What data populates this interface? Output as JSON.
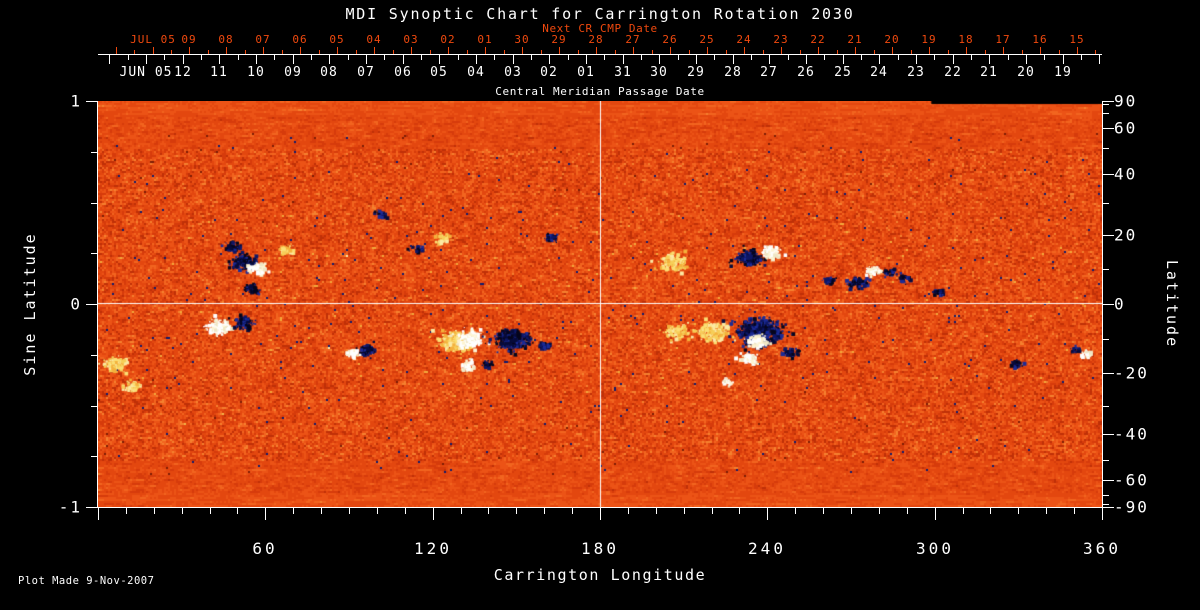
{
  "title": "MDI Synoptic Chart for Carrington Rotation 2030",
  "top_axis": {
    "label": "Next CR CMP Date",
    "color": "#f0490e",
    "tick_labels": [
      "JUL 05",
      "09",
      "08",
      "07",
      "06",
      "05",
      "04",
      "03",
      "02",
      "01",
      "30",
      "29",
      "28",
      "27",
      "26",
      "25",
      "24",
      "23",
      "22",
      "21",
      "20",
      "19",
      "18",
      "17",
      "16",
      "15"
    ]
  },
  "cmp_axis": {
    "label": "Central Meridian Passage Date",
    "tick_labels": [
      "JUN 05",
      "12",
      "11",
      "10",
      "09",
      "08",
      "07",
      "06",
      "05",
      "04",
      "03",
      "02",
      "01",
      "31",
      "30",
      "29",
      "28",
      "27",
      "26",
      "25",
      "24",
      "23",
      "22",
      "21",
      "20",
      "19"
    ]
  },
  "x_axis": {
    "label": "Carrington Longitude",
    "major_tick_labels": [
      "60",
      "120",
      "180",
      "240",
      "300",
      "360"
    ]
  },
  "y_left_axis": {
    "label": "Sine Latitude",
    "tick_labels": [
      "1",
      "0",
      "-1"
    ]
  },
  "y_right_axis": {
    "label": "Latitude",
    "tick_labels": [
      "90",
      "60",
      "40",
      "20",
      "0",
      "-20",
      "-40",
      "-60",
      "-90"
    ]
  },
  "footer": "Plot Made  9-Nov-2007",
  "colors": {
    "background": "#000000",
    "text": "#ffffff",
    "accent_red": "#f0490e",
    "map_base_orange": "#e3470f",
    "map_negative_navy": "#111b6d",
    "map_positive_white": "#ffffff",
    "map_bright_yellow": "#f3b74a"
  },
  "chart_data": {
    "type": "heatmap",
    "title": "MDI Synoptic Chart for Carrington Rotation 2030",
    "description": "Full-rotation solar photospheric magnetogram map: mottled orange quiet sun, dark navy negative-polarity and white positive-polarity active regions, white reference lines at longitude 180 and the equator.",
    "x": {
      "label": "Carrington Longitude",
      "range": [
        0,
        360
      ],
      "major_ticks": [
        60,
        120,
        180,
        240,
        300,
        360
      ],
      "minor_tick_step": 10
    },
    "y": {
      "label": "Sine Latitude",
      "range": [
        -1,
        1
      ],
      "labeled_ticks": [
        1,
        0,
        -1
      ],
      "minor_tick_step": 0.25
    },
    "y2": {
      "label": "Latitude",
      "labeled_ticks": [
        90,
        60,
        40,
        20,
        0,
        -20,
        -40,
        -60,
        -90
      ],
      "minor_ticks": [
        80,
        70,
        50,
        30,
        10,
        -10,
        -30,
        -50,
        -70,
        -80
      ]
    },
    "grid_lines": {
      "longitude": 180,
      "sine_latitude": 0
    },
    "top_axis_dates": {
      "next_cr": "see top_axis.tick_labels",
      "cmp": "see cmp_axis.tick_labels"
    },
    "active_regions": [
      {
        "lon": 52,
        "slat": 0.21,
        "r": 12,
        "pol": "neg"
      },
      {
        "lon": 48,
        "slat": 0.29,
        "r": 7,
        "pol": "neg"
      },
      {
        "lon": 55,
        "slat": 0.08,
        "r": 7,
        "pol": "neg"
      },
      {
        "lon": 57,
        "slat": 0.18,
        "r": 8,
        "pol": "pos"
      },
      {
        "lon": 67,
        "slat": 0.27,
        "r": 7,
        "pol": "bright"
      },
      {
        "lon": 43,
        "slat": -0.11,
        "r": 11,
        "pol": "pos"
      },
      {
        "lon": 52,
        "slat": -0.09,
        "r": 9,
        "pol": "neg"
      },
      {
        "lon": 6,
        "slat": -0.29,
        "r": 11,
        "pol": "bright"
      },
      {
        "lon": 12,
        "slat": -0.4,
        "r": 8,
        "pol": "bright"
      },
      {
        "lon": 91,
        "slat": -0.24,
        "r": 6,
        "pol": "pos"
      },
      {
        "lon": 96,
        "slat": -0.22,
        "r": 8,
        "pol": "neg"
      },
      {
        "lon": 101,
        "slat": 0.45,
        "r": 5,
        "pol": "neg"
      },
      {
        "lon": 114,
        "slat": 0.28,
        "r": 5,
        "pol": "neg"
      },
      {
        "lon": 123,
        "slat": 0.33,
        "r": 7,
        "pol": "bright"
      },
      {
        "lon": 128,
        "slat": -0.18,
        "r": 15,
        "pol": "bright"
      },
      {
        "lon": 133,
        "slat": -0.17,
        "r": 12,
        "pol": "pos"
      },
      {
        "lon": 148,
        "slat": -0.17,
        "r": 16,
        "pol": "neg"
      },
      {
        "lon": 132,
        "slat": -0.3,
        "r": 7,
        "pol": "pos"
      },
      {
        "lon": 139,
        "slat": -0.29,
        "r": 5,
        "pol": "neg"
      },
      {
        "lon": 160,
        "slat": -0.2,
        "r": 6,
        "pol": "neg"
      },
      {
        "lon": 162,
        "slat": 0.33,
        "r": 6,
        "pol": "neg"
      },
      {
        "lon": 206,
        "slat": 0.21,
        "r": 12,
        "pol": "bright"
      },
      {
        "lon": 207,
        "slat": -0.13,
        "r": 10,
        "pol": "bright"
      },
      {
        "lon": 233,
        "slat": 0.23,
        "r": 12,
        "pol": "neg"
      },
      {
        "lon": 241,
        "slat": 0.26,
        "r": 9,
        "pol": "pos"
      },
      {
        "lon": 220,
        "slat": -0.13,
        "r": 14,
        "pol": "bright"
      },
      {
        "lon": 237,
        "slat": -0.13,
        "r": 20,
        "pol": "neg"
      },
      {
        "lon": 236,
        "slat": -0.18,
        "r": 9,
        "pol": "pos"
      },
      {
        "lon": 233,
        "slat": -0.26,
        "r": 8,
        "pol": "pos"
      },
      {
        "lon": 225,
        "slat": -0.38,
        "r": 5,
        "pol": "pos"
      },
      {
        "lon": 248,
        "slat": -0.23,
        "r": 7,
        "pol": "neg"
      },
      {
        "lon": 262,
        "slat": 0.12,
        "r": 6,
        "pol": "neg"
      },
      {
        "lon": 272,
        "slat": 0.11,
        "r": 8,
        "pol": "neg"
      },
      {
        "lon": 278,
        "slat": 0.17,
        "r": 7,
        "pol": "pos"
      },
      {
        "lon": 284,
        "slat": 0.16,
        "r": 6,
        "pol": "neg"
      },
      {
        "lon": 289,
        "slat": 0.13,
        "r": 5,
        "pol": "neg"
      },
      {
        "lon": 301,
        "slat": 0.06,
        "r": 5,
        "pol": "neg"
      },
      {
        "lon": 329,
        "slat": -0.29,
        "r": 6,
        "pol": "neg"
      },
      {
        "lon": 350,
        "slat": -0.22,
        "r": 5,
        "pol": "neg"
      },
      {
        "lon": 354,
        "slat": -0.24,
        "r": 6,
        "pol": "pos"
      }
    ]
  }
}
